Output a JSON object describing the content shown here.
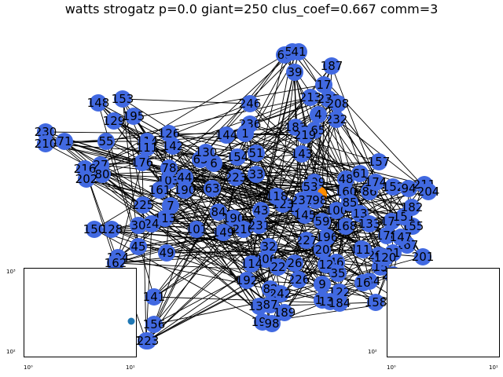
{
  "title": "watts strogatz p=0.0 giant=250 clus_coef=0.667 comm=3",
  "colors": {
    "node": "#4169e1",
    "highlight": "#ff8c00",
    "edge": "#000000",
    "inset_point": "#1f77b4"
  },
  "nodes": [
    {
      "label": "68"
    },
    {
      "label": "58"
    },
    {
      "label": "41"
    },
    {
      "label": "187"
    },
    {
      "label": "39"
    },
    {
      "label": "17"
    },
    {
      "label": "213"
    },
    {
      "label": "233"
    },
    {
      "label": "208"
    },
    {
      "label": "4"
    },
    {
      "label": "232"
    },
    {
      "label": "165"
    },
    {
      "label": "183"
    },
    {
      "label": "219"
    },
    {
      "label": "246"
    },
    {
      "label": "236"
    },
    {
      "label": "153"
    },
    {
      "label": "148"
    },
    {
      "label": "195"
    },
    {
      "label": "129"
    },
    {
      "label": "114"
    },
    {
      "label": "111"
    },
    {
      "label": "126"
    },
    {
      "label": "142"
    },
    {
      "label": "230"
    },
    {
      "label": "71"
    },
    {
      "label": "55"
    },
    {
      "label": "210"
    },
    {
      "label": "27"
    },
    {
      "label": "80"
    },
    {
      "label": "216"
    },
    {
      "label": "202"
    },
    {
      "label": "176"
    },
    {
      "label": "103"
    },
    {
      "label": "78"
    },
    {
      "label": "44"
    },
    {
      "label": "190"
    },
    {
      "label": "161"
    },
    {
      "label": "63"
    },
    {
      "label": "6"
    },
    {
      "label": "65"
    },
    {
      "label": "130"
    },
    {
      "label": "33"
    },
    {
      "label": "223"
    },
    {
      "label": "109"
    },
    {
      "label": "48"
    },
    {
      "label": "160"
    },
    {
      "label": "61"
    },
    {
      "label": "157"
    },
    {
      "label": "86"
    },
    {
      "label": "174"
    },
    {
      "label": "152"
    },
    {
      "label": "94"
    },
    {
      "label": "211"
    },
    {
      "label": "204"
    },
    {
      "label": "225"
    },
    {
      "label": "7"
    },
    {
      "label": "113"
    },
    {
      "label": "24"
    },
    {
      "label": "150"
    },
    {
      "label": "128"
    },
    {
      "label": "30"
    },
    {
      "label": "101"
    },
    {
      "label": "84"
    },
    {
      "label": "149"
    },
    {
      "label": "190"
    },
    {
      "label": "210"
    },
    {
      "label": "231"
    },
    {
      "label": "43"
    },
    {
      "label": "122"
    },
    {
      "label": "145"
    },
    {
      "label": "100"
    },
    {
      "label": "13"
    },
    {
      "label": "133"
    },
    {
      "label": "179"
    },
    {
      "label": "155"
    },
    {
      "label": "59"
    },
    {
      "label": "168"
    },
    {
      "label": "196"
    },
    {
      "label": "227"
    },
    {
      "label": "20"
    },
    {
      "label": "167"
    },
    {
      "label": "201"
    },
    {
      "label": "104"
    },
    {
      "label": "45"
    },
    {
      "label": "49"
    },
    {
      "label": "162"
    },
    {
      "label": "32"
    },
    {
      "label": "206"
    },
    {
      "label": "114"
    },
    {
      "label": "26"
    },
    {
      "label": "22"
    },
    {
      "label": "46"
    },
    {
      "label": "12"
    },
    {
      "label": "35"
    },
    {
      "label": "170"
    },
    {
      "label": "192"
    },
    {
      "label": "82"
    },
    {
      "label": "242"
    },
    {
      "label": "226"
    },
    {
      "label": "9"
    },
    {
      "label": "122"
    },
    {
      "label": "18"
    },
    {
      "label": "141"
    },
    {
      "label": "138"
    },
    {
      "label": "87"
    },
    {
      "label": "189"
    },
    {
      "label": "130"
    },
    {
      "label": "184"
    },
    {
      "label": "156"
    },
    {
      "label": "193"
    },
    {
      "label": "98"
    },
    {
      "label": "122"
    },
    {
      "label": "223"
    },
    {
      "label": "15"
    },
    {
      "label": "158"
    },
    {
      "label": "96"
    },
    {
      "label": "234"
    },
    {
      "label": "31"
    },
    {
      "label": "205"
    },
    {
      "label": "178"
    },
    {
      "label": "11"
    },
    {
      "label": "16"
    },
    {
      "label": "200"
    },
    {
      "label": "120"
    },
    {
      "label": "147"
    },
    {
      "label": "151"
    },
    {
      "label": "182"
    },
    {
      "label": "198"
    },
    {
      "label": "85"
    },
    {
      "label": "237"
    },
    {
      "label": "123"
    },
    {
      "label": "118"
    },
    {
      "label": "53"
    },
    {
      "label": "144"
    },
    {
      "label": "1"
    },
    {
      "label": "51"
    },
    {
      "label": "154"
    },
    {
      "label": "143"
    }
  ],
  "insets": [
    {
      "yticks": [
        "10³",
        "10²"
      ],
      "xticks": [
        "10⁰",
        "10¹"
      ]
    },
    {
      "yticks": [
        "10³",
        "10²"
      ],
      "xticks": [
        "10⁰",
        "10¹"
      ]
    }
  ]
}
